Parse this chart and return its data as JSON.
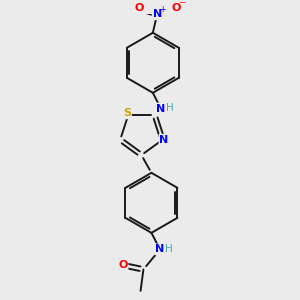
{
  "bg_color": "#ebebeb",
  "bond_color": "#1a1a1a",
  "atom_colors": {
    "N": "#0000ff",
    "O": "#ff0000",
    "S": "#ccaa00",
    "C": "#1a1a1a",
    "H": "#44aaaa"
  },
  "bond_lw": 1.4,
  "font_size": 7.5
}
